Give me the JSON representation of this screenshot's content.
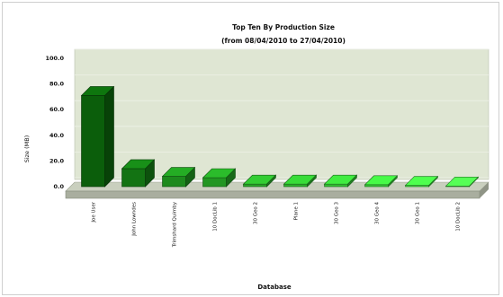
{
  "chart_data": {
    "type": "bar",
    "title": "Top Ten By Production Size",
    "subtitle": "(from 08/04/2010 to 27/04/2010)",
    "xlabel": "Database",
    "ylabel": "Size (MB)",
    "ylim": [
      0,
      100
    ],
    "yticks": [
      "100.0",
      "80.0",
      "60.0",
      "40.0",
      "20.0",
      "0.0"
    ],
    "categories": [
      "Joe User",
      "John Lowndes",
      "Trimshard Quimby",
      "10 DocLib 1",
      "30 Geo 2",
      "Plane 1",
      "30 Geo 3",
      "30 Geo 4",
      "30 Geo 1",
      "10 DocLib 2"
    ],
    "values": [
      71,
      14,
      8,
      7,
      2,
      2,
      2,
      1.5,
      1,
      0.5
    ],
    "bar_colors": [
      "#0b5e0b",
      "#137313",
      "#1d8a1d",
      "#229622",
      "#29a429",
      "#2db02d",
      "#33bd33",
      "#39c839",
      "#3ed23e",
      "#45dd45"
    ],
    "grid": true,
    "plot_background": "#dfe6d3"
  }
}
